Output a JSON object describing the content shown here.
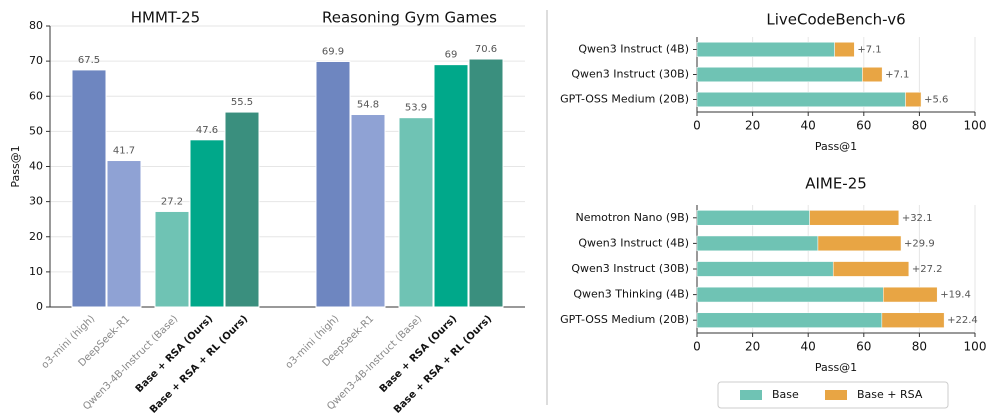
{
  "chart_data": [
    {
      "type": "bar",
      "ylabel": "Pass@1",
      "ylim": [
        0,
        80
      ],
      "yticks": [
        0,
        10,
        20,
        30,
        40,
        50,
        60,
        70,
        80
      ],
      "grid": true,
      "colors": [
        "#6e86c0",
        "#8fa2d4",
        "#6fc3b4",
        "#00a88a",
        "#3a8f7e"
      ],
      "panels": [
        {
          "title": "HMMT-25",
          "categories": [
            "o3-mini (high)",
            "DeepSeek-R1",
            "Qwen3-4B-Instruct (Base)",
            "Base + RSA (Ours)",
            "Base + RSA + RL (Ours)"
          ],
          "values": [
            67.5,
            41.7,
            27.2,
            47.6,
            55.5
          ]
        },
        {
          "title": "Reasoning Gym Games",
          "categories": [
            "o3-mini (high)",
            "DeepSeek-R1",
            "Qwen3-4B-Instruct (Base)",
            "Base + RSA (Ours)",
            "Base + RSA + RL (Ours)"
          ],
          "values": [
            69.9,
            54.8,
            53.9,
            69.0,
            70.6
          ]
        }
      ]
    },
    {
      "type": "stacked-barh",
      "title": "LiveCodeBench-v6",
      "xlabel": "Pass@1",
      "xlim": [
        0,
        100
      ],
      "xticks": [
        0,
        20,
        40,
        60,
        80,
        100
      ],
      "grid": true,
      "categories": [
        "Qwen3 Instruct (4B)",
        "Qwen3 Instruct (30B)",
        "GPT-OSS Medium (20B)"
      ],
      "series": [
        {
          "color": "#6fc3b4",
          "values": [
            49.5,
            59.5,
            75
          ]
        },
        {
          "color": "#e8a544",
          "values": [
            7.1,
            7.1,
            5.6
          ],
          "value_labels": [
            "+7.1",
            "+7.1",
            "+5.6"
          ]
        }
      ]
    },
    {
      "type": "stacked-barh",
      "title": "AIME-25",
      "xlabel": "Pass@1",
      "xlim": [
        0,
        100
      ],
      "xticks": [
        0,
        20,
        40,
        60,
        80,
        100
      ],
      "grid": true,
      "categories": [
        "Nemotron Nano (9B)",
        "Qwen3 Instruct (4B)",
        "Qwen3 Instruct (30B)",
        "Qwen3 Thinking (4B)",
        "GPT-OSS Medium (20B)"
      ],
      "series": [
        {
          "name": "Base",
          "color": "#6fc3b4",
          "values": [
            40.5,
            43.5,
            49,
            67,
            66.5
          ]
        },
        {
          "name": "Base + RSA",
          "color": "#e8a544",
          "values": [
            32.1,
            29.9,
            27.2,
            19.4,
            22.4
          ],
          "value_labels": [
            "+32.1",
            "+29.9",
            "+27.2",
            "+19.4",
            "+22.4"
          ]
        }
      ]
    }
  ]
}
